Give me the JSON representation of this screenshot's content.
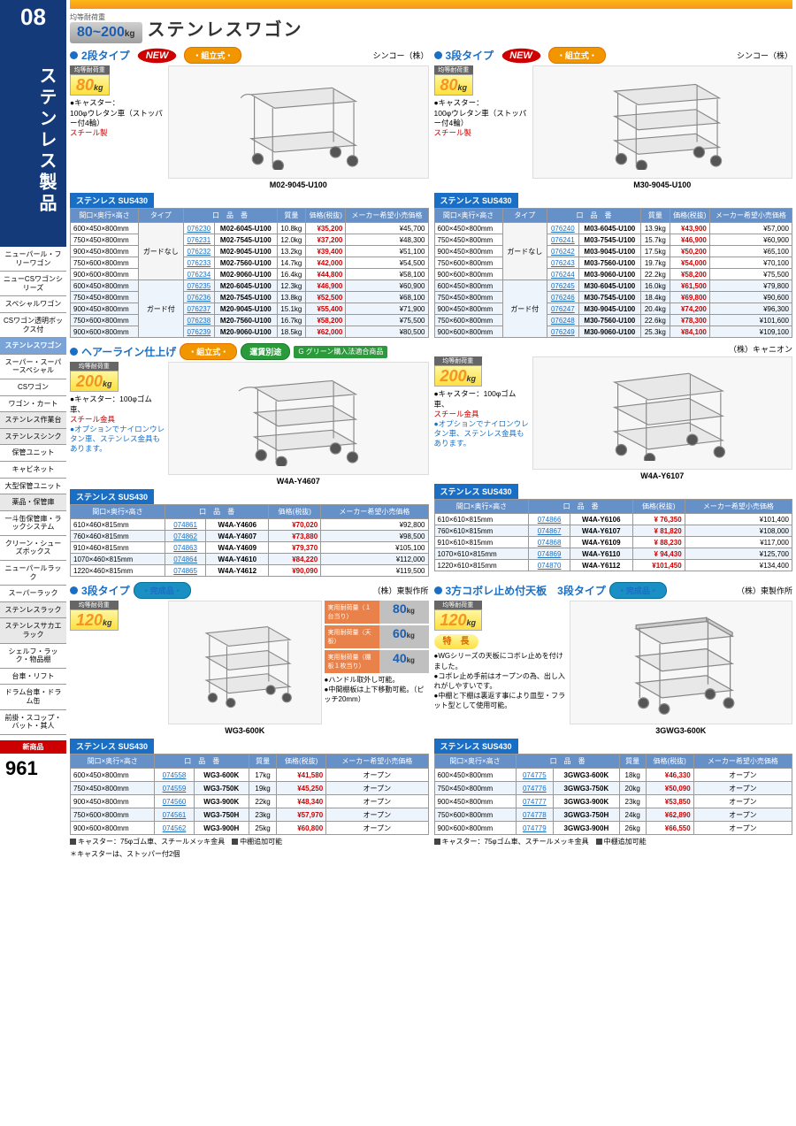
{
  "section": {
    "num": "08",
    "title": "ステンレス製品",
    "pagenum": "961"
  },
  "header": {
    "load_label": "均等耐荷重",
    "load_range": "80~200",
    "load_unit": "kg",
    "title": "ステンレスワゴン"
  },
  "nav": [
    {
      "t": "ニューパール・フリーワゴン"
    },
    {
      "t": "ニューCSワゴンシリーズ"
    },
    {
      "t": "スペシャルワゴン"
    },
    {
      "t": "CSワゴン透明ボックス付"
    },
    {
      "t": "ステンレスワゴン",
      "active": true
    },
    {
      "t": "スーパー・スーパースペシャル"
    },
    {
      "t": "CSワゴン"
    },
    {
      "t": "ワゴン・カート"
    },
    {
      "t": "ステンレス作業台",
      "alt": true
    },
    {
      "t": "ステンレスシンク",
      "alt": true
    },
    {
      "t": "保管ユニット"
    },
    {
      "t": "キャビネット"
    },
    {
      "t": "大型保管ユニット"
    },
    {
      "t": "薬品・保管庫",
      "alt": true
    },
    {
      "t": "一斗缶保管庫・ラックシステム"
    },
    {
      "t": "クリーン・シューズボックス"
    },
    {
      "t": "ニューパールラック"
    },
    {
      "t": "スーパーラック"
    },
    {
      "t": "ステンレスラック",
      "alt": true
    },
    {
      "t": "ステンレスサカエラック",
      "alt": true
    },
    {
      "t": "シェルフ・ラック・物品棚"
    },
    {
      "t": "台車・リフト"
    },
    {
      "t": "ドラム台車・ドラム缶"
    },
    {
      "t": "前掛・スコップ・バット・其人"
    }
  ],
  "new_label": "新商品",
  "common": {
    "material": "ステンレス SUS430",
    "assembled": "・組立式・",
    "finished": "・完成品・",
    "freight": "運賃別途",
    "green": "グリーン購入法適合商品",
    "dim_h": "間口×奥行×高さ",
    "type_h": "タイプ",
    "code_h": "口　品　番",
    "mass_h": "質量",
    "price_h": "価格(税抜)",
    "msrp_h": "メーカー希望小売価格",
    "caster_label": "●キャスター：",
    "new": "NEW"
  },
  "sec1": {
    "title": "2段タイプ",
    "maker": "シンコー（株）",
    "load": "80",
    "caster": "100φウレタン車（ストッパー付4輪）",
    "caster_note": "スチール製",
    "fig": "M02-9045-U100",
    "type1": "ガードなし",
    "type2": "ガード付",
    "rows": [
      {
        "d": "600×450×800mm",
        "c": "076230",
        "p": "M02-6045-U100",
        "m": "10.8kg",
        "pr": "¥35,200",
        "ms": "¥45,700"
      },
      {
        "d": "750×450×800mm",
        "c": "076231",
        "p": "M02-7545-U100",
        "m": "12.0kg",
        "pr": "¥37,200",
        "ms": "¥48,300"
      },
      {
        "d": "900×450×800mm",
        "c": "076232",
        "p": "M02-9045-U100",
        "m": "13.2kg",
        "pr": "¥39,400",
        "ms": "¥51,100"
      },
      {
        "d": "750×600×800mm",
        "c": "076233",
        "p": "M02-7560-U100",
        "m": "14.7kg",
        "pr": "¥42,000",
        "ms": "¥54,500"
      },
      {
        "d": "900×600×800mm",
        "c": "076234",
        "p": "M02-9060-U100",
        "m": "16.4kg",
        "pr": "¥44,800",
        "ms": "¥58,100"
      },
      {
        "d": "600×450×800mm",
        "c": "076235",
        "p": "M20-6045-U100",
        "m": "12.3kg",
        "pr": "¥46,900",
        "ms": "¥60,900",
        "b": true
      },
      {
        "d": "750×450×800mm",
        "c": "076236",
        "p": "M20-7545-U100",
        "m": "13.8kg",
        "pr": "¥52,500",
        "ms": "¥68,100",
        "b": true
      },
      {
        "d": "900×450×800mm",
        "c": "076237",
        "p": "M20-9045-U100",
        "m": "15.1kg",
        "pr": "¥55,400",
        "ms": "¥71,900",
        "b": true
      },
      {
        "d": "750×600×800mm",
        "c": "076238",
        "p": "M20-7560-U100",
        "m": "16.7kg",
        "pr": "¥58,200",
        "ms": "¥75,500",
        "b": true
      },
      {
        "d": "900×600×800mm",
        "c": "076239",
        "p": "M20-9060-U100",
        "m": "18.5kg",
        "pr": "¥62,000",
        "ms": "¥80,500",
        "b": true
      }
    ]
  },
  "sec2": {
    "title": "3段タイプ",
    "maker": "シンコー（株）",
    "load": "80",
    "caster": "100φウレタン車（ストッパー付4輪）",
    "caster_note": "スチール製",
    "fig": "M30-9045-U100",
    "type1": "ガードなし",
    "type2": "ガード付",
    "rows": [
      {
        "d": "600×450×800mm",
        "c": "076240",
        "p": "M03-6045-U100",
        "m": "13.9kg",
        "pr": "¥43,900",
        "ms": "¥57,000"
      },
      {
        "d": "750×450×800mm",
        "c": "076241",
        "p": "M03-7545-U100",
        "m": "15.7kg",
        "pr": "¥46,900",
        "ms": "¥60,900"
      },
      {
        "d": "900×450×800mm",
        "c": "076242",
        "p": "M03-9045-U100",
        "m": "17.5kg",
        "pr": "¥50,200",
        "ms": "¥65,100"
      },
      {
        "d": "750×600×800mm",
        "c": "076243",
        "p": "M03-7560-U100",
        "m": "19.7kg",
        "pr": "¥54,000",
        "ms": "¥70,100"
      },
      {
        "d": "900×600×800mm",
        "c": "076244",
        "p": "M03-9060-U100",
        "m": "22.2kg",
        "pr": "¥58,200",
        "ms": "¥75,500"
      },
      {
        "d": "600×450×800mm",
        "c": "076245",
        "p": "M30-6045-U100",
        "m": "16.0kg",
        "pr": "¥61,500",
        "ms": "¥79,800",
        "b": true
      },
      {
        "d": "750×450×800mm",
        "c": "076246",
        "p": "M30-7545-U100",
        "m": "18.4kg",
        "pr": "¥69,800",
        "ms": "¥90,600",
        "b": true
      },
      {
        "d": "900×450×800mm",
        "c": "076247",
        "p": "M30-9045-U100",
        "m": "20.4kg",
        "pr": "¥74,200",
        "ms": "¥96,300",
        "b": true
      },
      {
        "d": "750×600×800mm",
        "c": "076248",
        "p": "M30-7560-U100",
        "m": "22.6kg",
        "pr": "¥78,300",
        "ms": "¥101,600",
        "b": true
      },
      {
        "d": "900×600×800mm",
        "c": "076249",
        "p": "M30-9060-U100",
        "m": "25.3kg",
        "pr": "¥84,100",
        "ms": "¥109,100",
        "b": true
      }
    ]
  },
  "sec3": {
    "title": "ヘアーライン仕上げ",
    "maker": "（株）キャニオン",
    "load": "200",
    "caster": "100φゴム車、",
    "caster_note": "スチール金具",
    "opt": "●オプションでナイロンウレタン車、ステンレス金具もあります。",
    "figA": "W4A-Y4607",
    "figB": "W4A-Y6107",
    "rowsA": [
      {
        "d": "610×460×815mm",
        "c": "074861",
        "p": "W4A-Y4606",
        "pr": "¥70,020",
        "ms": "¥92,800"
      },
      {
        "d": "760×460×815mm",
        "c": "074862",
        "p": "W4A-Y4607",
        "pr": "¥73,880",
        "ms": "¥98,500"
      },
      {
        "d": "910×460×815mm",
        "c": "074863",
        "p": "W4A-Y4609",
        "pr": "¥79,370",
        "ms": "¥105,100"
      },
      {
        "d": "1070×460×815mm",
        "c": "074864",
        "p": "W4A-Y4610",
        "pr": "¥84,220",
        "ms": "¥112,000"
      },
      {
        "d": "1220×460×815mm",
        "c": "074865",
        "p": "W4A-Y4612",
        "pr": "¥90,090",
        "ms": "¥119,500"
      }
    ],
    "rowsB": [
      {
        "d": "610×610×815mm",
        "c": "074866",
        "p": "W4A-Y6106",
        "pr": "¥ 76,350",
        "ms": "¥101,400"
      },
      {
        "d": "760×610×815mm",
        "c": "074867",
        "p": "W4A-Y6107",
        "pr": "¥ 81,820",
        "ms": "¥108,000"
      },
      {
        "d": "910×610×815mm",
        "c": "074868",
        "p": "W4A-Y6109",
        "pr": "¥ 88,230",
        "ms": "¥117,000"
      },
      {
        "d": "1070×610×815mm",
        "c": "074869",
        "p": "W4A-Y6110",
        "pr": "¥ 94,430",
        "ms": "¥125,700"
      },
      {
        "d": "1220×610×815mm",
        "c": "074870",
        "p": "W4A-Y6112",
        "pr": "¥101,450",
        "ms": "¥134,400"
      }
    ]
  },
  "sec4": {
    "title": "3段タイプ",
    "maker": "（株）東製作所",
    "load": "120",
    "fig": "WG3-600K",
    "loads": [
      {
        "l": "実用耐荷量（１台当り）",
        "v": "80"
      },
      {
        "l": "実用耐荷量（天　板）",
        "v": "60"
      },
      {
        "l": "実用耐荷量（棚板１枚当り）",
        "v": "40"
      }
    ],
    "notes": [
      "●ハンドル取外し可能。",
      "●中間棚板は上下移動可能。（ピッチ20mm）"
    ],
    "rows": [
      {
        "d": "600×450×800mm",
        "c": "074558",
        "p": "WG3-600K",
        "m": "17kg",
        "pr": "¥41,580",
        "ms": "オープン"
      },
      {
        "d": "750×450×800mm",
        "c": "074559",
        "p": "WG3-750K",
        "m": "19kg",
        "pr": "¥45,250",
        "ms": "オープン"
      },
      {
        "d": "900×450×800mm",
        "c": "074560",
        "p": "WG3-900K",
        "m": "22kg",
        "pr": "¥48,340",
        "ms": "オープン"
      },
      {
        "d": "750×600×800mm",
        "c": "074561",
        "p": "WG3-750H",
        "m": "23kg",
        "pr": "¥57,970",
        "ms": "オープン"
      },
      {
        "d": "900×600×800mm",
        "c": "074562",
        "p": "WG3-900H",
        "m": "25kg",
        "pr": "¥60,800",
        "ms": "オープン"
      }
    ],
    "foot1": "キャスター：75φゴム車、スチールメッキ金具",
    "foot2": "中棚追加可能"
  },
  "sec5": {
    "title": "3方コボレ止め付天板　3段タイプ",
    "maker": "（株）東製作所",
    "load": "120",
    "fig": "3GWG3-600K",
    "feat_h": "特　長",
    "feats": [
      "●WGシリーズの天板にコボレ止めを付けました。",
      "●コボレ止め手前はオープンの為、出し入れがしやすいです。",
      "●中棚と下棚は裏返す事により皿型・フラット型として使用可能。"
    ],
    "rows": [
      {
        "d": "600×450×800mm",
        "c": "074775",
        "p": "3GWG3-600K",
        "m": "18kg",
        "pr": "¥46,330",
        "ms": "オープン"
      },
      {
        "d": "750×450×800mm",
        "c": "074776",
        "p": "3GWG3-750K",
        "m": "20kg",
        "pr": "¥50,090",
        "ms": "オープン"
      },
      {
        "d": "900×450×800mm",
        "c": "074777",
        "p": "3GWG3-900K",
        "m": "23kg",
        "pr": "¥53,850",
        "ms": "オープン"
      },
      {
        "d": "750×600×800mm",
        "c": "074778",
        "p": "3GWG3-750H",
        "m": "24kg",
        "pr": "¥62,890",
        "ms": "オープン"
      },
      {
        "d": "900×600×800mm",
        "c": "074779",
        "p": "3GWG3-900H",
        "m": "26kg",
        "pr": "¥66,550",
        "ms": "オープン"
      }
    ],
    "foot1": "キャスター：75φゴム車、スチールメッキ金具",
    "foot2": "中棚追加可能"
  },
  "star": "＊キャスターは、ストッパー付2個"
}
